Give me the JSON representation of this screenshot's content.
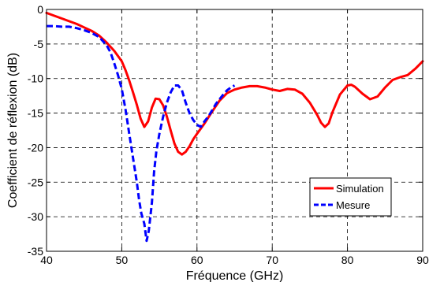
{
  "chart_data": {
    "type": "line",
    "xlabel": "Fréquence (GHz)",
    "ylabel": "Coefficient de réflexion (dB)",
    "xlim": [
      40,
      90
    ],
    "ylim": [
      -35,
      0
    ],
    "xticks": [
      40,
      50,
      60,
      70,
      80,
      90
    ],
    "yticks": [
      0,
      -5,
      -10,
      -15,
      -20,
      -25,
      -30,
      -35
    ],
    "xtick_labels": [
      "40",
      "50",
      "60",
      "70",
      "80",
      "90"
    ],
    "ytick_labels": [
      "0",
      "-5",
      "-10",
      "-15",
      "-20",
      "-25",
      "-30",
      "-35"
    ],
    "grid": true,
    "legend_position": "bottom-right",
    "series": [
      {
        "name": "Simulation",
        "color": "#ff0000",
        "style": "solid",
        "x": [
          40,
          41,
          42,
          43,
          44,
          45,
          46,
          47,
          48,
          49,
          50,
          50.5,
          51,
          51.5,
          52,
          52.5,
          53,
          53.5,
          54,
          54.5,
          55,
          55.5,
          56,
          56.5,
          57,
          57.5,
          58,
          58.5,
          59,
          59.5,
          60,
          61,
          62,
          63,
          64,
          65,
          66,
          67,
          68,
          69,
          70,
          71,
          72,
          73,
          74,
          75,
          76,
          76.5,
          77,
          77.5,
          78,
          79,
          80,
          80.5,
          81,
          82,
          83,
          84,
          85,
          86,
          87,
          88,
          89,
          90
        ],
        "y": [
          -0.5,
          -0.9,
          -1.3,
          -1.7,
          -2.1,
          -2.6,
          -3.1,
          -3.8,
          -4.8,
          -6.0,
          -7.5,
          -8.8,
          -10.3,
          -12.0,
          -13.8,
          -15.8,
          -17.0,
          -16.2,
          -14.2,
          -12.9,
          -13.0,
          -13.9,
          -15.5,
          -17.5,
          -19.4,
          -20.6,
          -21.0,
          -20.6,
          -19.8,
          -18.8,
          -18.0,
          -16.5,
          -14.8,
          -13.2,
          -12.1,
          -11.6,
          -11.3,
          -11.1,
          -11.1,
          -11.3,
          -11.6,
          -11.8,
          -11.5,
          -11.6,
          -12.2,
          -13.5,
          -15.3,
          -16.4,
          -17.0,
          -16.5,
          -14.9,
          -12.3,
          -11.0,
          -10.9,
          -11.2,
          -12.2,
          -13.0,
          -12.6,
          -11.3,
          -10.2,
          -9.8,
          -9.5,
          -8.6,
          -7.5
        ]
      },
      {
        "name": "Mesure",
        "color": "#0000ff",
        "style": "dashed",
        "x": [
          40,
          41,
          42,
          43,
          44,
          45,
          46,
          47,
          47.5,
          48,
          48.5,
          49,
          49.5,
          50,
          50.5,
          51,
          51.5,
          52,
          52.3,
          52.6,
          53,
          53.3,
          53.6,
          54,
          54.3,
          54.6,
          55,
          55.5,
          56,
          56.5,
          57,
          57.5,
          58,
          58.5,
          59,
          59.5,
          60,
          60.5,
          61,
          61.5,
          62,
          62.5,
          63,
          63.5,
          64,
          64.5,
          65
        ],
        "y": [
          -2.4,
          -2.4,
          -2.5,
          -2.5,
          -2.7,
          -3.0,
          -3.4,
          -4.0,
          -4.6,
          -5.2,
          -6.2,
          -7.8,
          -9.5,
          -11.5,
          -14.5,
          -18.0,
          -21.5,
          -25.0,
          -27.5,
          -29.5,
          -31.0,
          -33.5,
          -32.0,
          -28.0,
          -23.5,
          -20.5,
          -18.0,
          -15.5,
          -13.5,
          -12.0,
          -11.0,
          -11.0,
          -11.7,
          -13.5,
          -15.0,
          -16.0,
          -16.7,
          -17.0,
          -16.2,
          -15.5,
          -14.6,
          -13.7,
          -13.0,
          -12.3,
          -11.7,
          -11.3,
          -11.0
        ]
      }
    ]
  }
}
